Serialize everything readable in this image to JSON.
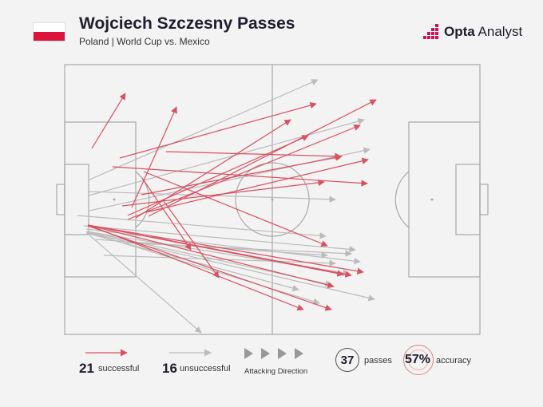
{
  "header": {
    "title": "Wojciech Szczesny Passes",
    "subtitle": "Poland | World Cup vs. Mexico",
    "brand_bold": "Opta",
    "brand_rest": " Analyst",
    "flag_colors": [
      "#ffffff",
      "#dc143c"
    ]
  },
  "colors": {
    "successful": "#d9505f",
    "unsuccessful": "#bbbbbb",
    "pitch_lines": "#a9a9a9",
    "brand_accent": "#c2185b"
  },
  "legend": {
    "successful_count": "21",
    "successful_label": "successful",
    "unsuccessful_count": "16",
    "unsuccessful_label": "unsuccessful",
    "direction_label": "Attacking Direction",
    "passes_count": "37",
    "passes_label": "passes",
    "accuracy_value": "57%",
    "accuracy_label": "accuracy",
    "accuracy_fraction": 0.57
  },
  "passes": {
    "unsuccessful": [
      [
        110,
        226,
        398,
        100
      ],
      [
        111,
        245,
        456,
        150
      ],
      [
        112,
        264,
        463,
        187
      ],
      [
        110,
        240,
        420,
        250
      ],
      [
        97,
        270,
        408,
        296
      ],
      [
        105,
        283,
        445,
        313
      ],
      [
        108,
        287,
        451,
        328
      ],
      [
        108,
        290,
        437,
        343
      ],
      [
        110,
        290,
        415,
        357
      ],
      [
        109,
        291,
        469,
        375
      ],
      [
        110,
        291,
        400,
        380
      ],
      [
        109,
        292,
        252,
        417
      ],
      [
        108,
        292,
        374,
        363
      ],
      [
        120,
        300,
        410,
        320
      ],
      [
        130,
        320,
        420,
        330
      ],
      [
        153,
        304,
        440,
        318
      ]
    ],
    "successful": [
      [
        115,
        186,
        157,
        117
      ],
      [
        150,
        198,
        396,
        130
      ],
      [
        186,
        271,
        471,
        125
      ],
      [
        160,
        275,
        451,
        157
      ],
      [
        165,
        260,
        221,
        134
      ],
      [
        170,
        273,
        364,
        150
      ],
      [
        160,
        270,
        386,
        170
      ],
      [
        208,
        190,
        427,
        196
      ],
      [
        141,
        209,
        460,
        230
      ],
      [
        153,
        258,
        406,
        228
      ],
      [
        183,
        266,
        461,
        200
      ],
      [
        177,
        244,
        428,
        196
      ],
      [
        178,
        223,
        239,
        313
      ],
      [
        205,
        252,
        274,
        348
      ],
      [
        111,
        282,
        380,
        388
      ],
      [
        110,
        283,
        415,
        388
      ],
      [
        110,
        282,
        455,
        341
      ],
      [
        110,
        282,
        430,
        344
      ],
      [
        110,
        282,
        418,
        359
      ],
      [
        180,
        215,
        410,
        308
      ],
      [
        190,
        297,
        440,
        345
      ]
    ]
  }
}
